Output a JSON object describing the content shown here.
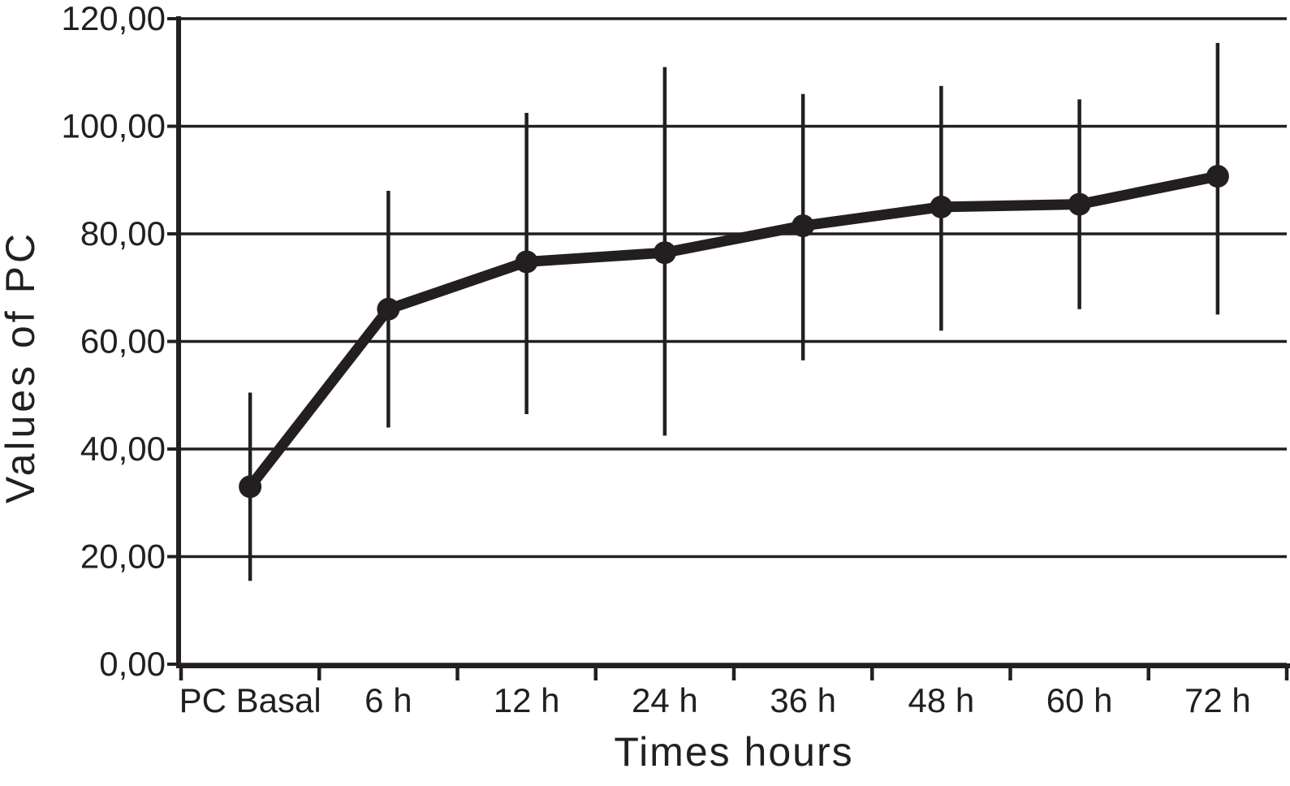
{
  "figure": {
    "background": "#ffffff",
    "ink_color": "#231f20"
  },
  "chart_data": {
    "type": "line",
    "title": "",
    "xlabel": "Times hours",
    "ylabel": "Values of PC",
    "categories": [
      "PC Basal",
      "6 h",
      "12 h",
      "24 h",
      "36 h",
      "48 h",
      "60 h",
      "72 h"
    ],
    "series": [
      {
        "name": "Values of PC",
        "values": [
          33,
          66,
          74.8,
          76.5,
          81.5,
          85,
          85.5,
          90.7
        ],
        "error_low": [
          15.5,
          44,
          46.5,
          42.5,
          56.5,
          62,
          66,
          65
        ],
        "error_high": [
          50.5,
          88,
          102.5,
          111,
          106,
          107.5,
          105,
          115.5
        ]
      }
    ],
    "ylim": [
      0,
      120
    ],
    "ytick_values": [
      0,
      20,
      40,
      60,
      80,
      100,
      120
    ],
    "ytick_labels": [
      "0,00",
      "20,00",
      "40,00",
      "60,00",
      "80,00",
      "100,00",
      "120,00"
    ],
    "grid": true,
    "legend_position": "none",
    "error_bars": true,
    "marker": "circle",
    "decimal_separator": ","
  }
}
